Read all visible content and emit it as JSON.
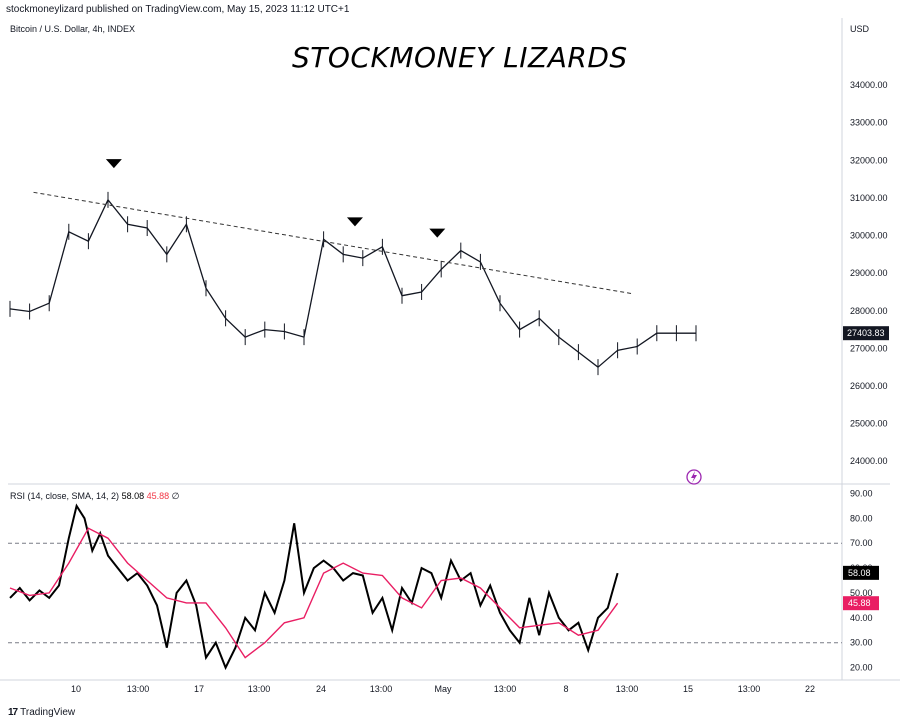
{
  "header": {
    "published_note": "stockmoneylizard published on TradingView.com, May 15, 2023 11:12 UTC+1",
    "symbol_legend": "Bitcoin / U.S. Dollar, 4h, INDEX",
    "watermark_title": "STOCKMONEY LIZARDS",
    "currency": "USD"
  },
  "rsi_legend": {
    "label": "RSI (14, close, SMA, 14, 2)",
    "rsi_value": "58.08",
    "sma_value": "45.88",
    "extra": "∅"
  },
  "footer": {
    "brand": "TradingView"
  },
  "colors": {
    "price": "#131722",
    "rsi": "#000000",
    "rsi_sma": "#e91e63",
    "last_price_bg": "#131722",
    "sma_badge_bg": "#e91e63"
  },
  "chart_data": [
    {
      "type": "line",
      "title": "Bitcoin / U.S. Dollar, 4h, INDEX",
      "ylabel": "USD",
      "ylim": [
        23500,
        35200
      ],
      "y_ticks": [
        "24000.00",
        "25000.00",
        "26000.00",
        "27000.00",
        "28000.00",
        "29000.00",
        "30000.00",
        "31000.00",
        "32000.00",
        "33000.00",
        "34000.00"
      ],
      "x_ticks": [
        "10",
        "13:00",
        "17",
        "13:00",
        "24",
        "13:00",
        "May",
        "13:00",
        "8",
        "13:00",
        "15",
        "13:00",
        "22"
      ],
      "last_price": "27403.83",
      "series": [
        {
          "x_days": [
            0,
            1,
            2,
            3,
            4,
            5,
            6,
            7,
            8,
            9,
            10,
            11,
            12,
            13,
            14,
            15,
            16,
            17,
            18,
            19,
            20,
            21,
            22,
            23,
            24,
            25,
            26,
            27,
            28,
            29,
            30,
            31,
            32,
            33,
            34,
            35
          ],
          "values": [
            28050,
            27980,
            28200,
            30100,
            29850,
            30950,
            30300,
            30200,
            29500,
            30300,
            28600,
            27800,
            27300,
            27500,
            27450,
            27300,
            29900,
            29500,
            29400,
            29700,
            28400,
            28500,
            29100,
            29600,
            29300,
            28200,
            27500,
            27800,
            27300,
            26900,
            26500,
            26950,
            27050,
            27403.83,
            27403.83,
            27403.83
          ]
        }
      ],
      "trendline": {
        "from": {
          "x_day": 1.2,
          "value": 31150
        },
        "to": {
          "x_day": 31.8,
          "value": 28450
        },
        "style": "dashed"
      },
      "markers": [
        {
          "x_day": 5.3,
          "value": 31900,
          "shape": "triangle-down"
        },
        {
          "x_day": 17.6,
          "value": 30350,
          "shape": "triangle-down"
        },
        {
          "x_day": 21.8,
          "value": 30050,
          "shape": "triangle-down"
        }
      ]
    },
    {
      "type": "line",
      "title": "RSI (14, close, SMA, 14, 2)",
      "ylim": [
        15,
        93
      ],
      "y_ticks": [
        "20.00",
        "30.00",
        "40.00",
        "50.00",
        "60.00",
        "70.00",
        "80.00",
        "90.00"
      ],
      "reference_lines": [
        30,
        70
      ],
      "series": [
        {
          "name": "RSI",
          "x_days": [
            0,
            0.5,
            1,
            1.5,
            2,
            2.5,
            3,
            3.4,
            3.8,
            4.2,
            4.6,
            5,
            5.5,
            6,
            6.5,
            7,
            7.5,
            8,
            8.5,
            9,
            9.5,
            10,
            10.5,
            11,
            11.5,
            12,
            12.5,
            13,
            13.5,
            14,
            14.5,
            15,
            15.5,
            16,
            16.5,
            17,
            17.5,
            18,
            18.5,
            19,
            19.5,
            20,
            20.5,
            21,
            21.5,
            22,
            22.5,
            23,
            23.5,
            24,
            24.5,
            25,
            25.5,
            26,
            26.5,
            27,
            27.5,
            28,
            28.5,
            29,
            29.5,
            30,
            30.5,
            31
          ],
          "values": [
            48,
            52,
            47,
            51,
            48,
            53,
            72,
            85,
            80,
            67,
            74,
            65,
            60,
            55,
            58,
            53,
            45,
            28,
            50,
            55,
            45,
            24,
            30,
            20,
            28,
            40,
            35,
            50,
            42,
            55,
            78,
            50,
            60,
            63,
            60,
            55,
            58,
            57,
            42,
            48,
            35,
            52,
            46,
            60,
            58,
            48,
            63,
            55,
            58,
            45,
            53,
            42,
            35,
            30,
            48,
            33,
            50,
            40,
            35,
            38,
            27,
            40,
            44,
            58
          ]
        },
        {
          "name": "SMA",
          "x_days": [
            0,
            1,
            2,
            3,
            4,
            5,
            6,
            7,
            8,
            9,
            10,
            11,
            12,
            13,
            14,
            15,
            16,
            17,
            18,
            19,
            20,
            21,
            22,
            23,
            24,
            25,
            26,
            27,
            28,
            29,
            30,
            31
          ],
          "values": [
            52,
            49,
            50,
            62,
            76,
            72,
            62,
            55,
            48,
            46,
            46,
            36,
            24,
            30,
            38,
            40,
            58,
            62,
            58,
            57,
            48,
            44,
            55,
            56,
            52,
            44,
            36,
            37,
            38,
            33,
            35,
            45.88
          ]
        }
      ]
    }
  ]
}
